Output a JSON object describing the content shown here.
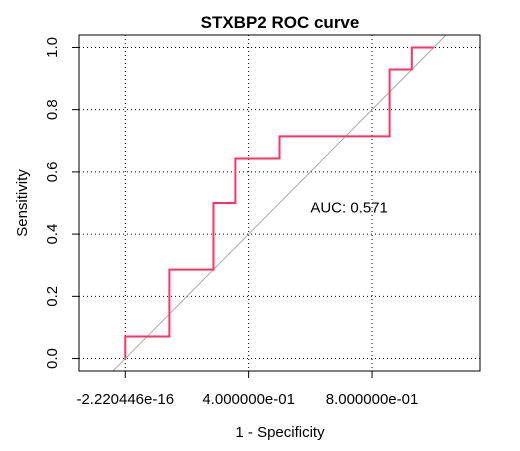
{
  "chart_data": {
    "type": "line",
    "title": "STXBP2 ROC curve",
    "xlabel": "1 - Specificity",
    "ylabel": "Sensitivity",
    "xlim": [
      -0.15,
      1.15
    ],
    "ylim": [
      -0.04,
      1.04
    ],
    "x_ticks": [
      0.0,
      0.4,
      0.8
    ],
    "x_tick_labels": [
      "-2.220446e-16",
      "4.000000e-01",
      "8.000000e-01"
    ],
    "y_ticks": [
      0.0,
      0.2,
      0.4,
      0.6,
      0.8,
      1.0
    ],
    "y_tick_labels": [
      "0.0",
      "0.2",
      "0.4",
      "0.6",
      "0.8",
      "1.0"
    ],
    "grid": true,
    "grid_style": "dotted",
    "series": [
      {
        "color": "#ff3366",
        "step": true,
        "x": [
          0.0,
          0.0,
          0.143,
          0.143,
          0.286,
          0.286,
          0.357,
          0.357,
          0.5,
          0.5,
          0.857,
          0.857,
          0.929,
          0.929,
          1.0
        ],
        "y": [
          0.0,
          0.071,
          0.071,
          0.286,
          0.286,
          0.5,
          0.5,
          0.643,
          0.643,
          0.714,
          0.714,
          0.929,
          0.929,
          1.0,
          1.0
        ]
      }
    ],
    "reference_line": {
      "type": "diagonal",
      "color": "#aaaaaa"
    },
    "annotations": [
      {
        "text": "AUC: 0.571",
        "x": 0.6,
        "y": 0.47,
        "color": "#ff3366"
      }
    ]
  }
}
